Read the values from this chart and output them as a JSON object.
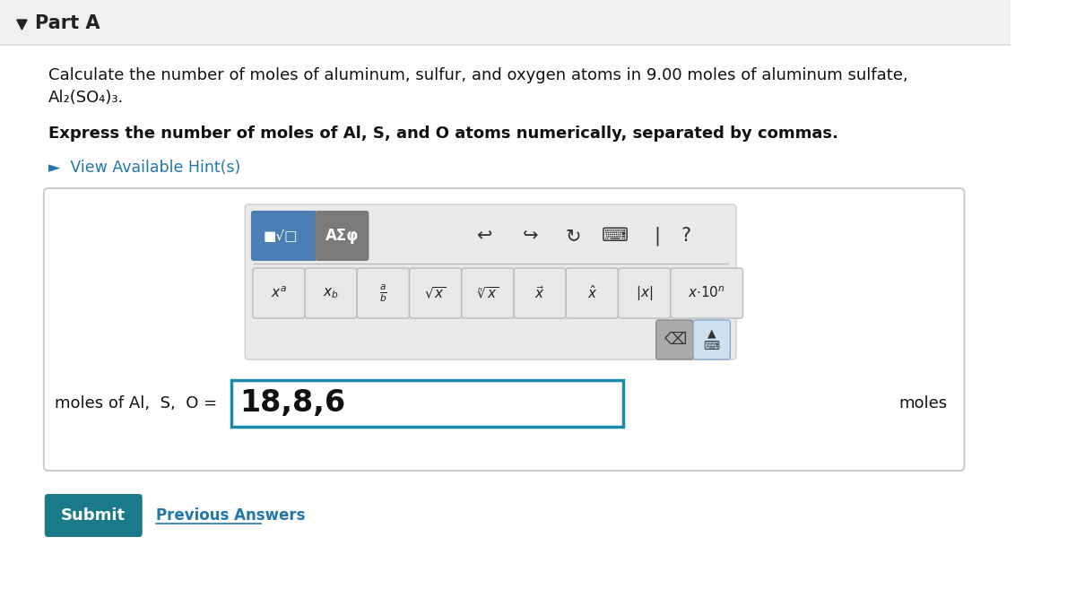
{
  "bg_color": "#f8f8f8",
  "white": "#ffffff",
  "part_a_text": "Part A",
  "question_line1": "Calculate the number of moles of aluminum, sulfur, and oxygen atoms in 9.00 moles of aluminum sulfate,",
  "question_line2": "Al₂(SO₄)₃.",
  "bold_line_prefix": "Express the number of moles of ",
  "bold_line_italic": "Al, S, and O",
  "bold_line_suffix": " atoms numerically, separated by commas.",
  "hint_text": "►  View Available Hint(s)",
  "hint_color": "#2277aa",
  "answer_label": "moles of Al,  S,  O = ",
  "answer_value": "18,8,6",
  "answer_units": "moles",
  "submit_text": "Submit",
  "submit_bg": "#1a7a8a",
  "submit_color": "#ffffff",
  "prev_text": "Previous Answers",
  "prev_color": "#2277aa",
  "toolbar_btn1_bg": "#4a7fb5",
  "toolbar_btn2_bg": "#7a7a7a",
  "panel_border": "#cccccc",
  "input_border": "#1a8aaa",
  "toolbar_bg": "#eaeaea",
  "part_a_header_bg": "#f0f0f0",
  "header_border": "#dddddd",
  "del_btn_bg": "#aaaaaa",
  "kbd_btn_bg": "#cce0f0",
  "math_btn_bg": "#e8e8e8",
  "math_btn_border": "#bbbbbb"
}
